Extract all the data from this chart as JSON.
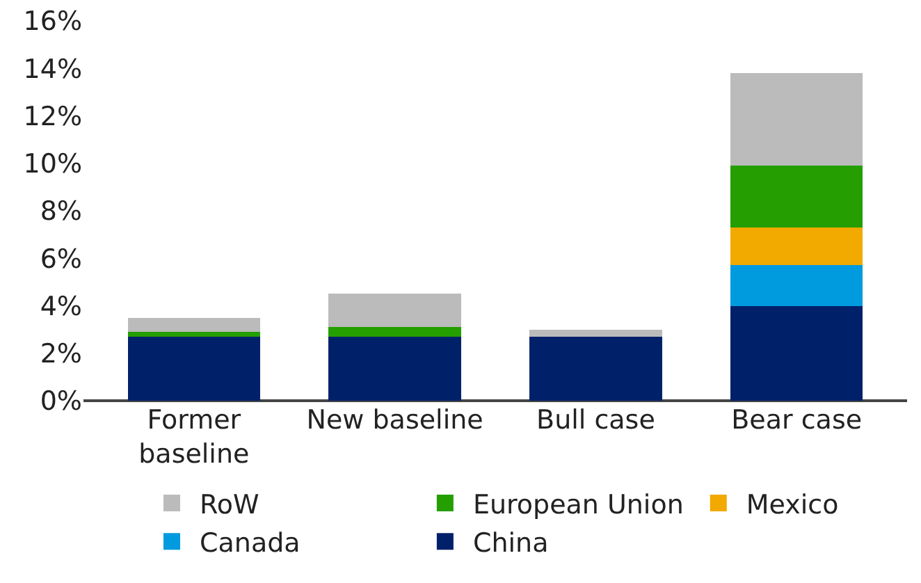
{
  "chart_data": {
    "type": "bar",
    "stacked": true,
    "categories": [
      "Former\nbaseline",
      "New baseline",
      "Bull case",
      "Bear case"
    ],
    "series": [
      {
        "name": "China",
        "color": "#002169",
        "values": [
          2.7,
          2.7,
          2.7,
          4.0
        ]
      },
      {
        "name": "Canada",
        "color": "#009adf",
        "values": [
          0,
          0,
          0,
          1.7
        ]
      },
      {
        "name": "Mexico",
        "color": "#f2a900",
        "values": [
          0,
          0,
          0,
          1.6
        ]
      },
      {
        "name": "European Union",
        "color": "#249e00",
        "values": [
          0.2,
          0.4,
          0,
          2.6
        ]
      },
      {
        "name": "RoW",
        "color": "#bbbbbb",
        "values": [
          0.6,
          1.4,
          0.3,
          3.9
        ]
      }
    ],
    "ylim": [
      0,
      16
    ],
    "yticks": [
      {
        "value": 0,
        "label": "0%"
      },
      {
        "value": 2,
        "label": "2%"
      },
      {
        "value": 4,
        "label": "4%"
      },
      {
        "value": 6,
        "label": "6%"
      },
      {
        "value": 8,
        "label": "8%"
      },
      {
        "value": 10,
        "label": "10%"
      },
      {
        "value": 12,
        "label": "12%"
      },
      {
        "value": 14,
        "label": "14%"
      },
      {
        "value": 16,
        "label": "16%"
      }
    ],
    "grid": false,
    "legend": "bottom"
  }
}
